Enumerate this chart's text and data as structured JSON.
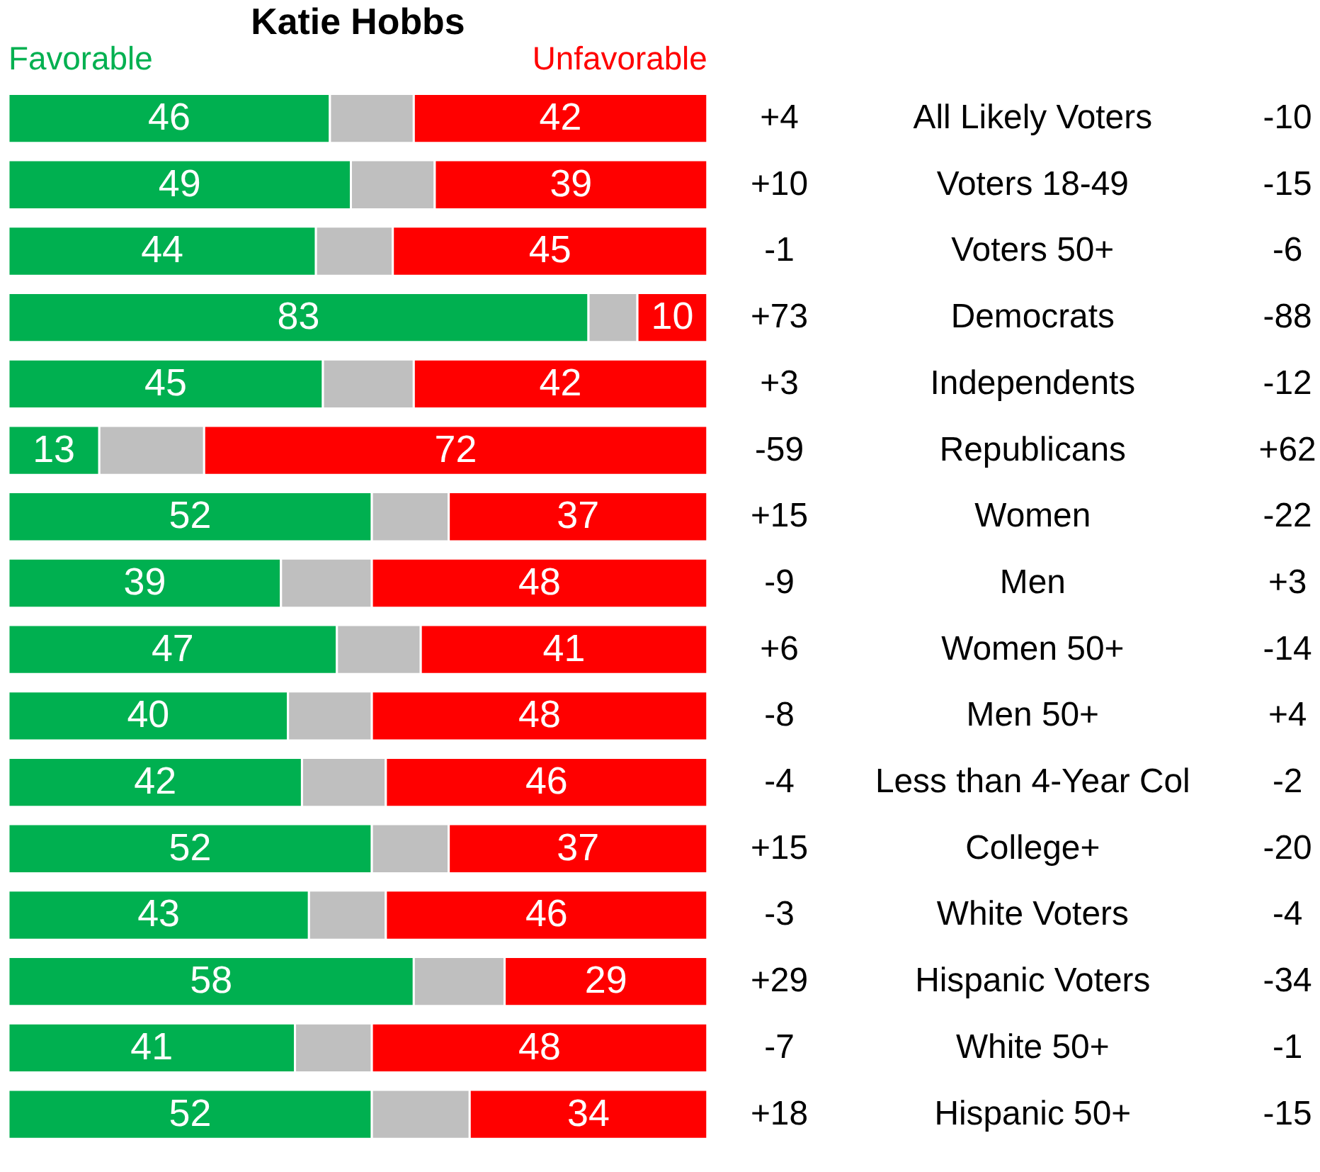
{
  "chart_data": {
    "type": "bar",
    "orientation": "horizontal",
    "stacked": true,
    "title": "Katie Hobbs",
    "categories": [
      "All Likely Voters",
      "Voters 18-49",
      "Voters 50+",
      "Democrats",
      "Independents",
      "Republicans",
      "Women",
      "Men",
      "Women 50+",
      "Men 50+",
      "Less than 4-Year Col",
      "College+",
      "White Voters",
      "Hispanic Voters",
      "White 50+",
      "Hispanic 50+"
    ],
    "xlim": [
      0,
      100
    ],
    "tick_labels": "y",
    "series": [
      {
        "name": "Favorable",
        "color": "#00b050",
        "values": [
          46,
          49,
          44,
          83,
          45,
          13,
          52,
          39,
          47,
          40,
          42,
          52,
          43,
          58,
          41,
          52
        ],
        "value_labels": [
          "46",
          "49",
          "44",
          "83",
          "45",
          "13",
          "52",
          "39",
          "47",
          "40",
          "42",
          "52",
          "43",
          "58",
          "41",
          "52"
        ]
      },
      {
        "color": "#bfbfbf",
        "values": [
          12,
          12,
          11,
          7,
          13,
          15,
          11,
          13,
          12,
          12,
          12,
          11,
          11,
          13,
          11,
          14
        ]
      },
      {
        "name": "Unfavorable",
        "color": "#ff0000",
        "values": [
          42,
          39,
          45,
          10,
          42,
          72,
          37,
          48,
          41,
          48,
          46,
          37,
          46,
          29,
          48,
          34
        ],
        "value_labels": [
          "42",
          "39",
          "45",
          "10",
          "42",
          "72",
          "37",
          "48",
          "41",
          "48",
          "46",
          "37",
          "46",
          "29",
          "48",
          "34"
        ]
      }
    ],
    "annotations": [
      "+4",
      "-10",
      "+10",
      "-15",
      "-1",
      "-6",
      "+73",
      "-88",
      "+3",
      "-12",
      "-59",
      "+62",
      "+15",
      "-22",
      "-9",
      "+3",
      "+6",
      "-14",
      "-8",
      "+4",
      "-4",
      "-2",
      "+15",
      "-20",
      "-3",
      "-4",
      "+29",
      "-34",
      "-7",
      "-1",
      "+18",
      "-15"
    ]
  }
}
